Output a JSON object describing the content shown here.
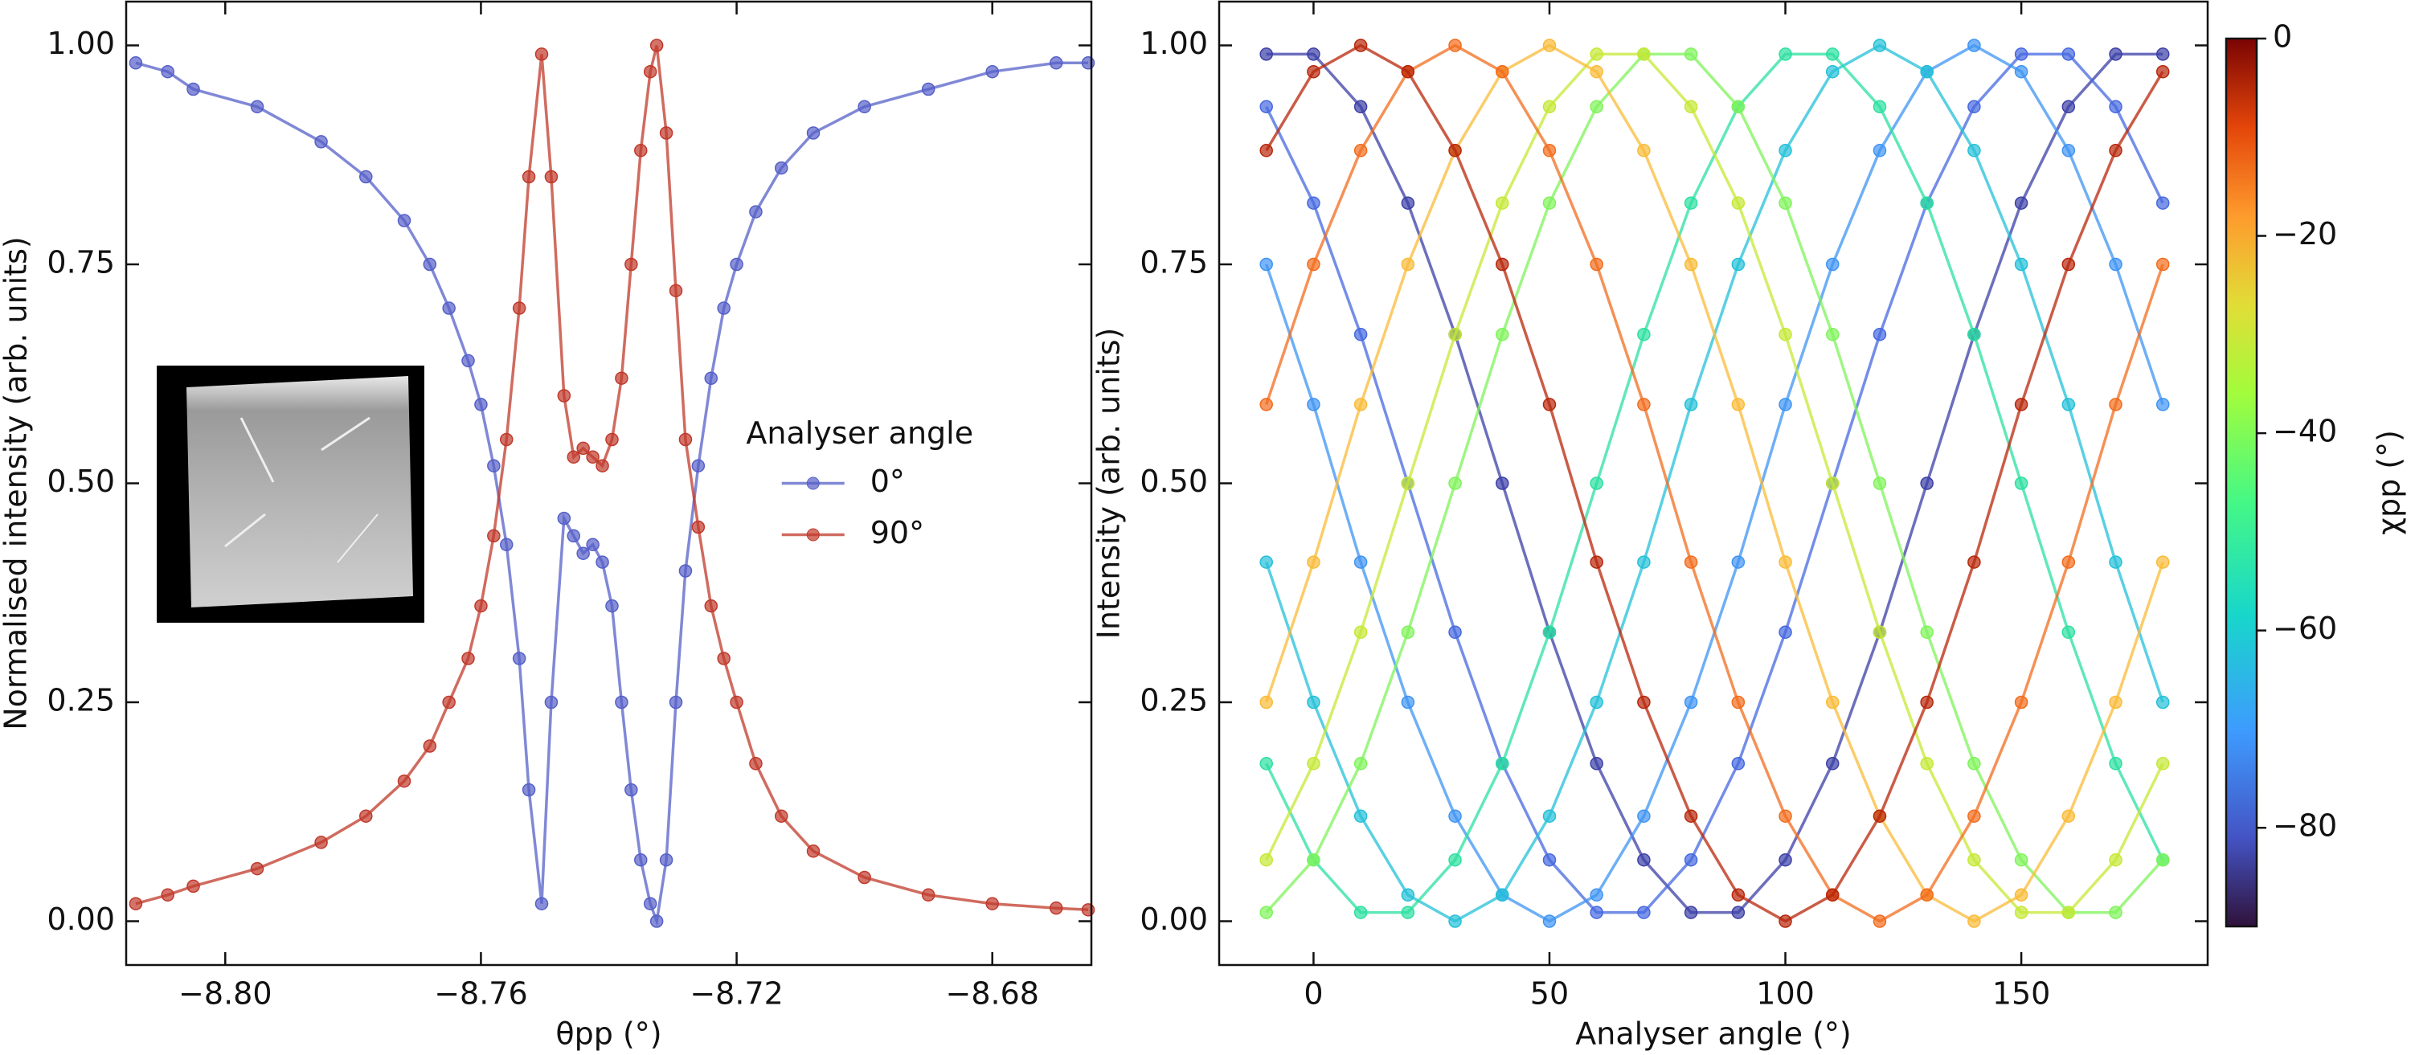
{
  "chart_data": [
    {
      "type": "line",
      "x_label": "θpp (°)",
      "y_label": "Normalised intensity (arb. units)",
      "xlim": [
        -8.8155,
        -8.6645
      ],
      "ylim": [
        -0.05,
        1.05
      ],
      "xticks": [
        {
          "value": -8.8,
          "label": "−8.80"
        },
        {
          "value": -8.76,
          "label": "−8.76"
        },
        {
          "value": -8.72,
          "label": "−8.72"
        },
        {
          "value": -8.68,
          "label": "−8.68"
        }
      ],
      "yticks": [
        {
          "value": 0,
          "label": "0.00"
        },
        {
          "value": 0.25,
          "label": "0.25"
        },
        {
          "value": 0.5,
          "label": "0.50"
        },
        {
          "value": 0.75,
          "label": "0.75"
        },
        {
          "value": 1,
          "label": "1.00"
        }
      ],
      "legend_title": "Analyser angle",
      "legend_loc": "center right",
      "x": [
        -8.814,
        -8.809,
        -8.805,
        -8.795,
        -8.785,
        -8.778,
        -8.772,
        -8.768,
        -8.765,
        -8.762,
        -8.76,
        -8.758,
        -8.756,
        -8.754,
        -8.7525,
        -8.7505,
        -8.749,
        -8.747,
        -8.7455,
        -8.744,
        -8.7425,
        -8.741,
        -8.7395,
        -8.738,
        -8.7365,
        -8.735,
        -8.7335,
        -8.7325,
        -8.731,
        -8.7295,
        -8.728,
        -8.726,
        -8.724,
        -8.722,
        -8.72,
        -8.717,
        -8.713,
        -8.708,
        -8.7,
        -8.69,
        -8.68,
        -8.67,
        -8.665
      ],
      "series": [
        {
          "name": "0°",
          "color": "#5560c8",
          "values": [
            0.98,
            0.97,
            0.95,
            0.93,
            0.89,
            0.85,
            0.8,
            0.75,
            0.7,
            0.64,
            0.59,
            0.52,
            0.43,
            0.3,
            0.15,
            0.02,
            0.25,
            0.46,
            0.44,
            0.42,
            0.43,
            0.41,
            0.36,
            0.25,
            0.15,
            0.07,
            0.02,
            0,
            0.07,
            0.25,
            0.4,
            0.52,
            0.62,
            0.7,
            0.75,
            0.81,
            0.86,
            0.9,
            0.93,
            0.95,
            0.97,
            0.98,
            0.98
          ]
        },
        {
          "name": "90°",
          "color": "#c0392b",
          "values": [
            0.02,
            0.03,
            0.04,
            0.06,
            0.09,
            0.12,
            0.16,
            0.2,
            0.25,
            0.3,
            0.36,
            0.44,
            0.55,
            0.7,
            0.85,
            0.99,
            0.85,
            0.6,
            0.53,
            0.54,
            0.53,
            0.52,
            0.55,
            0.62,
            0.75,
            0.88,
            0.97,
            1.0,
            0.9,
            0.72,
            0.55,
            0.45,
            0.36,
            0.3,
            0.25,
            0.18,
            0.12,
            0.08,
            0.05,
            0.03,
            0.02,
            0.015,
            0.013
          ]
        }
      ]
    },
    {
      "type": "line",
      "x_label": "Analyser angle (°)",
      "y_label": "Intensity (arb. units)",
      "xlim": [
        -20,
        189.5
      ],
      "ylim": [
        -0.05,
        1.05
      ],
      "xticks": [
        0,
        50,
        100,
        150
      ],
      "yticks": [
        {
          "value": 0,
          "label": "0.00"
        },
        {
          "value": 0.25,
          "label": "0.25"
        },
        {
          "value": 0.5,
          "label": "0.50"
        },
        {
          "value": 0.75,
          "label": "0.75"
        },
        {
          "value": 1,
          "label": "1.00"
        }
      ],
      "colorbar": {
        "label": "χpp (°)",
        "lim": [
          -90,
          0
        ],
        "ticks": [
          0,
          {
            "value": -20,
            "label": "−20"
          },
          {
            "value": -40,
            "label": "−40"
          },
          {
            "value": -60,
            "label": "−60"
          },
          {
            "value": -80,
            "label": "−80"
          }
        ]
      },
      "x": [
        -10,
        0,
        10,
        20,
        30,
        40,
        50,
        60,
        70,
        80,
        90,
        100,
        110,
        120,
        130,
        140,
        150,
        160,
        170,
        180
      ],
      "series": [
        {
          "color": "#3b3fa6",
          "values": [
            0.99,
            0.99,
            0.93,
            0.82,
            0.67,
            0.5,
            0.33,
            0.18,
            0.07,
            0.01,
            0.01,
            0.07,
            0.18,
            0.33,
            0.5,
            0.67,
            0.82,
            0.93,
            0.99,
            0.99
          ]
        },
        {
          "color": "#4568e0",
          "values": [
            0.93,
            0.82,
            0.67,
            0.5,
            0.33,
            0.18,
            0.07,
            0.01,
            0.01,
            0.07,
            0.18,
            0.33,
            0.5,
            0.67,
            0.82,
            0.93,
            0.99,
            0.99,
            0.93,
            0.82
          ]
        },
        {
          "color": "#3e94f3",
          "values": [
            0.75,
            0.59,
            0.41,
            0.25,
            0.12,
            0.03,
            0,
            0.03,
            0.12,
            0.25,
            0.41,
            0.59,
            0.75,
            0.88,
            0.97,
            1,
            0.97,
            0.88,
            0.75,
            0.59
          ]
        },
        {
          "color": "#23c0d8",
          "values": [
            0.41,
            0.25,
            0.12,
            0.03,
            0,
            0.03,
            0.12,
            0.25,
            0.41,
            0.59,
            0.75,
            0.88,
            0.97,
            1,
            0.97,
            0.88,
            0.75,
            0.59,
            0.41,
            0.25
          ]
        },
        {
          "color": "#2be0a0",
          "values": [
            0.18,
            0.07,
            0.01,
            0.01,
            0.07,
            0.18,
            0.33,
            0.5,
            0.67,
            0.82,
            0.93,
            0.99,
            0.99,
            0.93,
            0.82,
            0.67,
            0.5,
            0.33,
            0.18,
            0.07
          ]
        },
        {
          "color": "#7ff35a",
          "values": [
            0.01,
            0.07,
            0.18,
            0.33,
            0.5,
            0.67,
            0.82,
            0.93,
            0.99,
            0.99,
            0.93,
            0.82,
            0.67,
            0.5,
            0.33,
            0.18,
            0.07,
            0.01,
            0.01,
            0.07
          ]
        },
        {
          "color": "#c5e835",
          "values": [
            0.07,
            0.18,
            0.33,
            0.5,
            0.67,
            0.82,
            0.93,
            0.99,
            0.99,
            0.93,
            0.82,
            0.67,
            0.5,
            0.33,
            0.18,
            0.07,
            0.01,
            0.01,
            0.07,
            0.18
          ]
        },
        {
          "color": "#f9bb38",
          "values": [
            0.25,
            0.41,
            0.59,
            0.75,
            0.88,
            0.97,
            1,
            0.97,
            0.88,
            0.75,
            0.59,
            0.41,
            0.25,
            0.12,
            0.03,
            0,
            0.03,
            0.12,
            0.25,
            0.41
          ]
        },
        {
          "color": "#f26c1d",
          "values": [
            0.59,
            0.75,
            0.88,
            0.97,
            1,
            0.97,
            0.88,
            0.75,
            0.59,
            0.41,
            0.25,
            0.12,
            0.03,
            0,
            0.03,
            0.12,
            0.25,
            0.41,
            0.59,
            0.75
          ]
        },
        {
          "color": "#b8260a",
          "values": [
            0.88,
            0.97,
            1,
            0.97,
            0.88,
            0.75,
            0.59,
            0.41,
            0.25,
            0.12,
            0.03,
            0,
            0.03,
            0.12,
            0.25,
            0.41,
            0.59,
            0.75,
            0.88,
            0.97
          ]
        }
      ]
    }
  ]
}
